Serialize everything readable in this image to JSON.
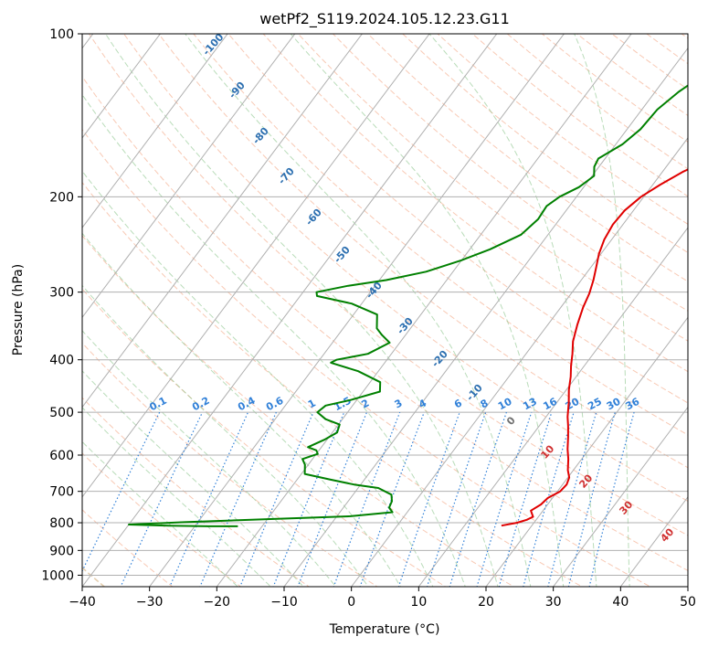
{
  "chart_data": {
    "type": "line",
    "title": "wetPf2_S119.2024.105.12.23.G11",
    "xlabel": "Temperature (°C)",
    "ylabel": "Pressure (hPa)",
    "xlim": [
      -40,
      50
    ],
    "ylim": [
      1050,
      100
    ],
    "y_scale": "log",
    "x_ticks": [
      -40,
      -30,
      -20,
      -10,
      0,
      10,
      20,
      30,
      40,
      50
    ],
    "y_ticks": [
      100,
      200,
      300,
      400,
      500,
      600,
      700,
      800,
      900,
      1000
    ],
    "grid": true,
    "series": [
      {
        "key": "temperature",
        "color": "#e00000",
        "points": [
          [
            15.5,
            810
          ],
          [
            17.5,
            800
          ],
          [
            18.6,
            790
          ],
          [
            19.2,
            780
          ],
          [
            18.2,
            760
          ],
          [
            19.0,
            740
          ],
          [
            19.3,
            720
          ],
          [
            20.4,
            700
          ],
          [
            20.6,
            680
          ],
          [
            20.2,
            660
          ],
          [
            19.2,
            640
          ],
          [
            18.0,
            610
          ],
          [
            16.8,
            585
          ],
          [
            15.5,
            555
          ],
          [
            14.3,
            530
          ],
          [
            13.2,
            510
          ],
          [
            11.8,
            480
          ],
          [
            10.4,
            455
          ],
          [
            9.2,
            430
          ],
          [
            8.0,
            410
          ],
          [
            6.9,
            390
          ],
          [
            5.6,
            370
          ],
          [
            4.4,
            345
          ],
          [
            3.3,
            320
          ],
          [
            2.7,
            302
          ],
          [
            1.8,
            285
          ],
          [
            0.8,
            270
          ],
          [
            -0.3,
            255
          ],
          [
            -1.1,
            240
          ],
          [
            -1.5,
            225
          ],
          [
            -1.3,
            212
          ],
          [
            -0.4,
            200
          ],
          [
            1.1,
            190
          ],
          [
            3.0,
            180
          ],
          [
            5.2,
            172
          ],
          [
            7.2,
            165
          ],
          [
            8.6,
            157
          ],
          [
            10.2,
            147
          ],
          [
            11.5,
            138
          ],
          [
            13.2,
            128
          ],
          [
            14.8,
            120
          ],
          [
            16.8,
            112
          ],
          [
            18.5,
            106
          ],
          [
            19.9,
            100
          ]
        ]
      },
      {
        "key": "dewpoint",
        "color": "#008000",
        "points": [
          [
            -23.6,
            812
          ],
          [
            -28.0,
            812
          ],
          [
            -34.0,
            810
          ],
          [
            -40.0,
            806
          ],
          [
            -32.0,
            798
          ],
          [
            -20.0,
            788
          ],
          [
            -8.0,
            778
          ],
          [
            -2.2,
            765
          ],
          [
            -3.2,
            750
          ],
          [
            -3.5,
            730
          ],
          [
            -4.3,
            710
          ],
          [
            -7.0,
            690
          ],
          [
            -11.0,
            680
          ],
          [
            -15.0,
            666
          ],
          [
            -19.5,
            650
          ],
          [
            -20.5,
            625
          ],
          [
            -21.5,
            610
          ],
          [
            -19.8,
            597
          ],
          [
            -20.4,
            588
          ],
          [
            -22.0,
            580
          ],
          [
            -20.4,
            562
          ],
          [
            -19.3,
            545
          ],
          [
            -19.8,
            527
          ],
          [
            -22.5,
            515
          ],
          [
            -24.5,
            500
          ],
          [
            -24.0,
            486
          ],
          [
            -21.0,
            475
          ],
          [
            -17.5,
            458
          ],
          [
            -18.5,
            440
          ],
          [
            -23.0,
            420
          ],
          [
            -28.0,
            405
          ],
          [
            -27.5,
            400
          ],
          [
            -23.5,
            390
          ],
          [
            -21.5,
            372
          ],
          [
            -23.5,
            360
          ],
          [
            -25.0,
            350
          ],
          [
            -26.5,
            330
          ],
          [
            -31.5,
            315
          ],
          [
            -37.5,
            305
          ],
          [
            -38.0,
            300
          ],
          [
            -34.0,
            292
          ],
          [
            -29.0,
            285
          ],
          [
            -24.0,
            275
          ],
          [
            -20.0,
            262
          ],
          [
            -17.0,
            250
          ],
          [
            -14.0,
            235
          ],
          [
            -13.2,
            220
          ],
          [
            -13.4,
            208
          ],
          [
            -12.5,
            200
          ],
          [
            -10.7,
            192
          ],
          [
            -9.7,
            183
          ],
          [
            -10.7,
            176
          ],
          [
            -11.0,
            170
          ],
          [
            -9.0,
            160
          ],
          [
            -8.0,
            150
          ],
          [
            -7.7,
            138
          ],
          [
            -6.5,
            128
          ],
          [
            -4.5,
            118
          ],
          [
            -2.5,
            108
          ],
          [
            -0.7,
            100
          ]
        ]
      }
    ],
    "mixing_ratio_labels": [
      "0.1",
      "0.2",
      "0.4",
      "0.6",
      "1",
      "1.5",
      "2",
      "3",
      "4",
      "6",
      "8",
      "10",
      "13",
      "16",
      "20",
      "25",
      "30",
      "36"
    ],
    "dry_adiabat_labels": [
      "-100",
      "-90",
      "-80",
      "-70",
      "-60",
      "-50",
      "-40",
      "-30",
      "-20",
      "-10",
      "0",
      "10",
      "20",
      "30",
      "40"
    ]
  }
}
